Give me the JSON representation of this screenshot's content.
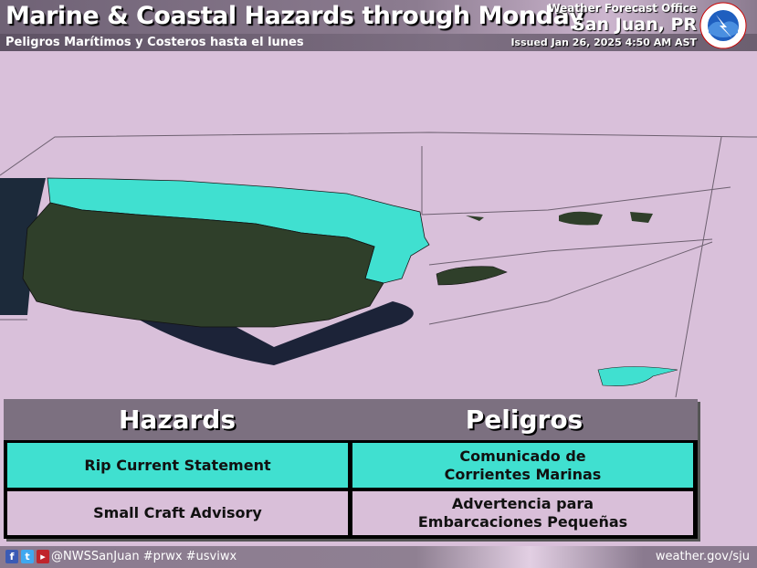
{
  "header": {
    "title": "Marine & Coastal Hazards through Monday",
    "subtitle": "Peligros Marítimos y Costeros hasta el lunes",
    "office_label": "Weather Forecast Office",
    "office_city": "San Juan, PR",
    "issued": "Issued Jan 26, 2025 4:50 AM AST",
    "logo_text": "NATIONAL WEATHER SERVICE"
  },
  "table": {
    "headers": [
      "Hazards",
      "Peligros"
    ],
    "rows": [
      {
        "en": "Rip Current Statement",
        "es_line1": "Comunicado de",
        "es_line2": "Corrientes Marinas",
        "color": "#40e0d0"
      },
      {
        "en": "Small Craft Advisory",
        "es_line1": "Advertencia para",
        "es_line2": "Embarcaciones Pequeñas",
        "color": "#d9bfd9"
      }
    ]
  },
  "map": {
    "legend_colors": {
      "rip_current": "#40e0d0",
      "small_craft": "#d9bfd9"
    }
  },
  "footer": {
    "social": "@NWSSanJuan #prwx #usviwx",
    "website": "weather.gov/sju",
    "icons": [
      "facebook-icon",
      "twitter-icon",
      "youtube-icon"
    ]
  }
}
